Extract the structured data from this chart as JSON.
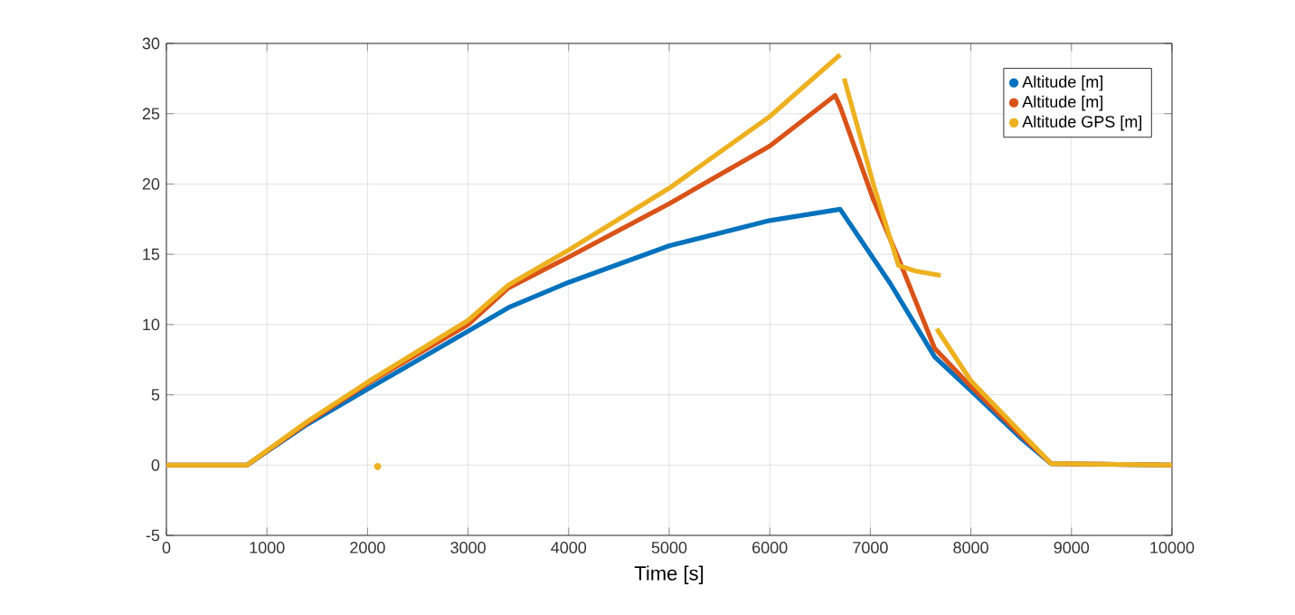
{
  "chart_data": {
    "type": "line",
    "xlabel": "Time [s]",
    "xlim": [
      0,
      10000
    ],
    "xticks": [
      0,
      1000,
      2000,
      3000,
      4000,
      5000,
      6000,
      7000,
      8000,
      9000,
      10000
    ],
    "ylim": [
      -5,
      30
    ],
    "yticks": [
      -5,
      0,
      5,
      10,
      15,
      20,
      25,
      30
    ],
    "grid": true,
    "legend": "top right",
    "marker": "none",
    "series": [
      {
        "name": "Altitude [m]",
        "color": "#0072bd",
        "x": [
          0,
          800,
          1400,
          2000,
          2800,
          3400,
          4000,
          5000,
          6000,
          6700,
          7200,
          7640,
          8000,
          8500,
          8800,
          10000
        ],
        "values": [
          0,
          0,
          2.9,
          5.4,
          8.7,
          11.2,
          13.0,
          15.6,
          17.4,
          18.2,
          12.9,
          7.7,
          5.3,
          1.9,
          0.1,
          0
        ]
      },
      {
        "name": "Altitude [m]",
        "color": "#d95319",
        "x": [
          0,
          800,
          1400,
          2000,
          3000,
          3400,
          4000,
          5000,
          6000,
          6650,
          6700,
          7030,
          7280,
          7640,
          8000,
          8500,
          8800,
          10000
        ],
        "values": [
          0,
          0,
          3.0,
          5.8,
          10.0,
          12.6,
          14.8,
          18.6,
          22.7,
          26.3,
          25.5,
          18.9,
          14.7,
          8.3,
          5.6,
          2.1,
          0.1,
          0
        ]
      },
      {
        "name": "Altitude GPS [m]",
        "color": "#edb120",
        "x": [
          0,
          800,
          1400,
          2000,
          3000,
          3400,
          4000,
          5000,
          6000,
          6700
        ],
        "values": [
          0,
          0,
          3.1,
          5.9,
          10.3,
          12.8,
          15.3,
          19.7,
          24.8,
          29.2
        ]
      },
      {
        "color": "#edb120",
        "x": [
          6740,
          7030,
          7280,
          7450,
          7700
        ],
        "values": [
          27.5,
          20,
          14.2,
          13.8,
          13.5
        ]
      },
      {
        "color": "#edb120",
        "x": [
          7660,
          8000,
          8500,
          8800,
          10000
        ],
        "values": [
          9.7,
          6.0,
          2.3,
          0.1,
          0
        ]
      },
      {
        "type": "scatter",
        "marker": "circle",
        "color": "#edb120",
        "x": [
          2100
        ],
        "values": [
          -0.1
        ]
      }
    ]
  }
}
